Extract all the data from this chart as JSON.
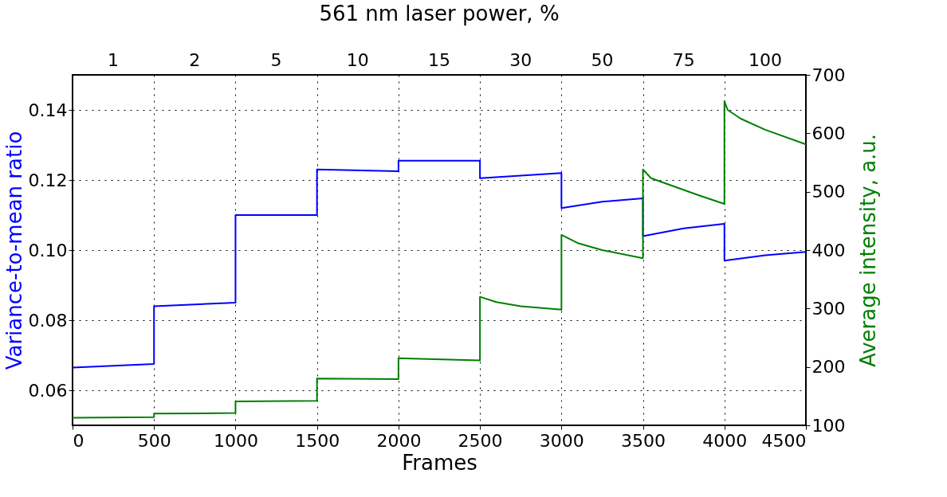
{
  "chart_data": {
    "type": "line",
    "title": "561 nm laser power, %",
    "xlabel": "Frames",
    "ylabel": "Variance-to-mean ratio",
    "y2label": "Average intensity, a.u.",
    "xlim": [
      0,
      4500
    ],
    "xticks": [
      0,
      500,
      1000,
      1500,
      2000,
      2500,
      3000,
      3500,
      4000,
      4500
    ],
    "annotations": [
      "1",
      "2",
      "5",
      "10",
      "15",
      "30",
      "50",
      "75",
      "100"
    ],
    "ylim": [
      0.05,
      0.15
    ],
    "yticks": [
      0.06,
      0.08,
      {
        "value": 0.1,
        "label": "0.10"
      },
      0.12,
      0.14
    ],
    "y2lim": [
      100,
      700
    ],
    "y2ticks": [
      100,
      200,
      300,
      400,
      500,
      600,
      700
    ],
    "grid": true,
    "line_style": "solid",
    "marker": "none",
    "series": [
      {
        "color": "#0000ff",
        "x": [
          0,
          500,
          500,
          1000,
          1000,
          1500,
          1500,
          2000,
          2000,
          2500,
          2500,
          3000,
          3000,
          3250,
          3500,
          3500,
          3750,
          4000,
          4000,
          4250,
          4500
        ],
        "values": [
          0.0665,
          0.0675,
          0.084,
          0.085,
          0.11,
          0.11,
          0.123,
          0.1225,
          0.1255,
          0.1255,
          0.1205,
          0.122,
          0.112,
          0.1138,
          0.1148,
          0.104,
          0.1062,
          0.1075,
          0.097,
          0.0985,
          0.0995
        ]
      },
      {
        "color": "#007f00",
        "axis": "y2",
        "x": [
          0,
          500,
          500,
          1000,
          1000,
          1500,
          1500,
          2000,
          2000,
          2500,
          2500,
          2600,
          2750,
          3000,
          3000,
          3100,
          3250,
          3500,
          3500,
          3550,
          3700,
          3850,
          4000,
          4000,
          4020,
          4100,
          4250,
          4500
        ],
        "values": [
          113,
          114,
          120,
          121,
          141,
          142,
          180,
          179,
          215,
          211,
          320,
          311,
          304,
          298,
          426,
          412,
          400,
          386,
          538,
          523,
          508,
          493,
          479,
          655,
          640,
          625,
          606,
          581
        ]
      }
    ]
  }
}
